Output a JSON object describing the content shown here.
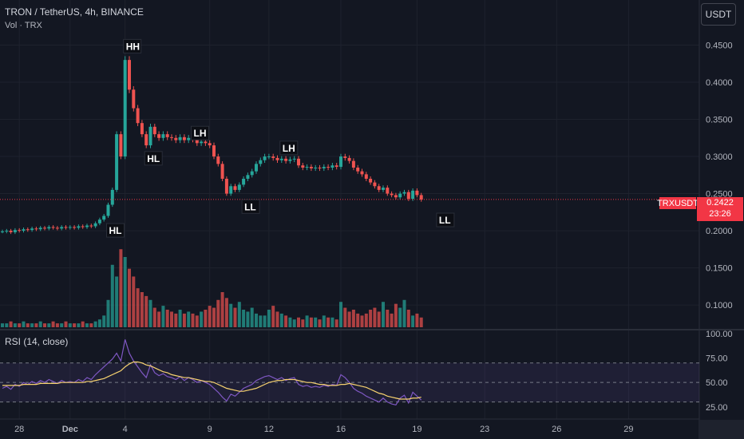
{
  "header": {
    "title": "TRON / TetherUS, 4h, BINANCE",
    "volume_label": "Vol · TRX",
    "currency_button": "USDT"
  },
  "price_tag": {
    "symbol": "TRXUSDT",
    "price": "0.2422",
    "countdown": "23:26"
  },
  "colors": {
    "up": "#26a69a",
    "down": "#ef5350",
    "bg": "#131722",
    "rsi": "#7e57c2",
    "rsi_ma": "#f7d26f"
  },
  "chart_data": [
    {
      "type": "candlestick",
      "title": "TRON / TetherUS, 4h, BINANCE",
      "y_axis": {
        "ticks": [
          0.1,
          0.15,
          0.2,
          0.25,
          0.3,
          0.35,
          0.4,
          0.45
        ],
        "tick_labels": [
          "0.1000",
          "0.1500",
          "0.2000",
          "0.2500",
          "0.3000",
          "0.3500",
          "0.4000",
          "0.4500"
        ],
        "range": [
          0.07,
          0.5
        ],
        "position": "right"
      },
      "x_axis": {
        "tick_labels": [
          "28",
          "Dec",
          "4",
          "9",
          "12",
          "16",
          "19",
          "23",
          "26",
          "29"
        ],
        "tick_index": [
          4,
          16,
          29,
          49,
          63,
          80,
          98,
          114,
          131,
          148
        ]
      },
      "closes": [
        0.199,
        0.2,
        0.198,
        0.201,
        0.2,
        0.202,
        0.201,
        0.203,
        0.202,
        0.204,
        0.203,
        0.205,
        0.204,
        0.203,
        0.205,
        0.204,
        0.205,
        0.204,
        0.206,
        0.205,
        0.207,
        0.206,
        0.21,
        0.215,
        0.22,
        0.235,
        0.255,
        0.33,
        0.3,
        0.43,
        0.39,
        0.365,
        0.345,
        0.33,
        0.315,
        0.34,
        0.33,
        0.325,
        0.33,
        0.326,
        0.325,
        0.322,
        0.326,
        0.322,
        0.325,
        0.323,
        0.318,
        0.32,
        0.318,
        0.315,
        0.3,
        0.29,
        0.27,
        0.25,
        0.26,
        0.255,
        0.262,
        0.27,
        0.275,
        0.28,
        0.29,
        0.295,
        0.3,
        0.3,
        0.298,
        0.295,
        0.297,
        0.294,
        0.296,
        0.297,
        0.288,
        0.285,
        0.286,
        0.284,
        0.285,
        0.284,
        0.286,
        0.285,
        0.288,
        0.286,
        0.3,
        0.298,
        0.294,
        0.285,
        0.28,
        0.276,
        0.27,
        0.265,
        0.26,
        0.255,
        0.258,
        0.25,
        0.248,
        0.245,
        0.25,
        0.252,
        0.243,
        0.254,
        0.248,
        0.242
      ],
      "annotations": [
        {
          "label": "HH",
          "index": 29,
          "price": 0.448
        },
        {
          "label": "HL",
          "index": 34,
          "price": 0.297
        },
        {
          "label": "LH",
          "index": 45,
          "price": 0.331
        },
        {
          "label": "LH",
          "index": 66,
          "price": 0.311
        },
        {
          "label": "HL",
          "index": 25,
          "price": 0.2
        },
        {
          "label": "LL",
          "index": 57,
          "price": 0.232
        },
        {
          "label": "LL",
          "index": 103,
          "price": 0.214
        }
      ],
      "current_price": 0.2422
    },
    {
      "type": "bar",
      "title": "Vol · TRX",
      "values": [
        2,
        2,
        3,
        2,
        2,
        3,
        2,
        2,
        2,
        3,
        2,
        2,
        3,
        2,
        2,
        3,
        2,
        2,
        2,
        3,
        2,
        2,
        3,
        4,
        6,
        14,
        32,
        26,
        40,
        36,
        30,
        26,
        20,
        18,
        16,
        14,
        10,
        8,
        11,
        9,
        8,
        7,
        9,
        7,
        8,
        7,
        6,
        8,
        9,
        11,
        10,
        14,
        18,
        15,
        12,
        10,
        13,
        9,
        8,
        10,
        7,
        6,
        6,
        9,
        11,
        8,
        7,
        6,
        5,
        4,
        5,
        4,
        6,
        5,
        5,
        4,
        6,
        5,
        5,
        4,
        13,
        10,
        8,
        9,
        7,
        6,
        7,
        9,
        10,
        8,
        13,
        9,
        7,
        12,
        10,
        14,
        9,
        6,
        7,
        5
      ]
    },
    {
      "type": "line",
      "title": "RSI (14, close)",
      "ylim": [
        15,
        100
      ],
      "y_tick_labels": [
        "100.00",
        "75.00",
        "50.00",
        "25.00"
      ],
      "y_ticks": [
        100,
        75,
        50,
        25
      ],
      "bands": [
        30,
        70
      ],
      "series": [
        {
          "name": "RSI",
          "values": [
            44,
            46,
            43,
            48,
            46,
            50,
            48,
            51,
            49,
            52,
            50,
            53,
            51,
            49,
            52,
            50,
            51,
            50,
            53,
            51,
            55,
            53,
            58,
            62,
            66,
            70,
            74,
            80,
            72,
            94,
            80,
            72,
            66,
            60,
            55,
            68,
            60,
            57,
            59,
            56,
            55,
            53,
            56,
            52,
            55,
            53,
            50,
            52,
            50,
            48,
            44,
            40,
            35,
            31,
            38,
            36,
            40,
            44,
            46,
            48,
            52,
            54,
            56,
            57,
            55,
            53,
            55,
            52,
            54,
            55,
            48,
            46,
            47,
            45,
            46,
            45,
            47,
            46,
            48,
            47,
            58,
            55,
            50,
            44,
            41,
            39,
            36,
            34,
            32,
            30,
            34,
            30,
            28,
            27,
            34,
            37,
            29,
            40,
            36,
            32
          ]
        },
        {
          "name": "MA",
          "values": [
            47,
            47,
            47,
            47,
            47,
            48,
            48,
            48,
            48,
            49,
            49,
            49,
            49,
            49,
            50,
            50,
            50,
            50,
            50,
            50,
            51,
            51,
            52,
            53,
            54,
            56,
            58,
            60,
            62,
            66,
            69,
            71,
            71,
            70,
            68,
            67,
            65,
            63,
            61,
            60,
            58,
            57,
            56,
            55,
            55,
            54,
            53,
            52,
            51,
            51,
            50,
            48,
            46,
            44,
            43,
            42,
            41,
            41,
            42,
            43,
            44,
            46,
            48,
            50,
            51,
            52,
            52,
            53,
            53,
            53,
            52,
            51,
            50,
            50,
            49,
            48,
            48,
            47,
            47,
            47,
            48,
            48,
            49,
            48,
            47,
            46,
            45,
            43,
            41,
            39,
            38,
            36,
            35,
            34,
            33,
            33,
            33,
            34,
            34,
            35
          ]
        }
      ]
    }
  ]
}
